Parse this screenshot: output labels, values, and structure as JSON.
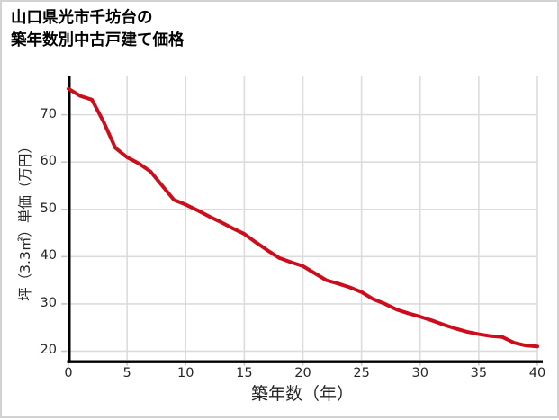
{
  "page": {
    "background": "#ffffff",
    "border_color": "#d2d2d2"
  },
  "title": {
    "line1": "山口県光市千坊台の",
    "line2": "築年数別中古戸建て価格"
  },
  "chart_data": {
    "type": "line",
    "title": "山口県光市千坊台の築年数別中古戸建て価格",
    "xlabel": "築年数（年）",
    "ylabel": "坪（3.3㎡）単価（万円）",
    "x": [
      0,
      1,
      2,
      3,
      4,
      5,
      6,
      7,
      8,
      9,
      10,
      11,
      12,
      13,
      14,
      15,
      16,
      17,
      18,
      19,
      20,
      21,
      22,
      23,
      24,
      25,
      26,
      27,
      28,
      29,
      30,
      31,
      32,
      33,
      34,
      35,
      36,
      37,
      38,
      39,
      40
    ],
    "y": [
      75.5,
      74,
      73.2,
      68.5,
      63,
      61,
      59.7,
      58,
      55,
      52,
      51,
      49.8,
      48.5,
      47.3,
      46,
      44.8,
      43,
      41.3,
      39.7,
      38.8,
      38,
      36.5,
      35,
      34.3,
      33.5,
      32.5,
      31,
      30,
      28.8,
      28,
      27.3,
      26.5,
      25.6,
      24.8,
      24.1,
      23.6,
      23.2,
      23,
      21.8,
      21.2,
      21
    ],
    "xticks": [
      0,
      5,
      10,
      15,
      20,
      25,
      30,
      35,
      40
    ],
    "yticks": [
      20,
      30,
      40,
      50,
      60,
      70
    ],
    "xlim": [
      0,
      40
    ],
    "ylim": [
      18,
      78.3
    ],
    "grid": true,
    "legend": "none",
    "line_color": "#cc0e1c",
    "grid_color": "#dcdcdc",
    "tick_color": "#c6c6c6",
    "spine_color": "#000000",
    "tick_label_color": "#262626"
  }
}
